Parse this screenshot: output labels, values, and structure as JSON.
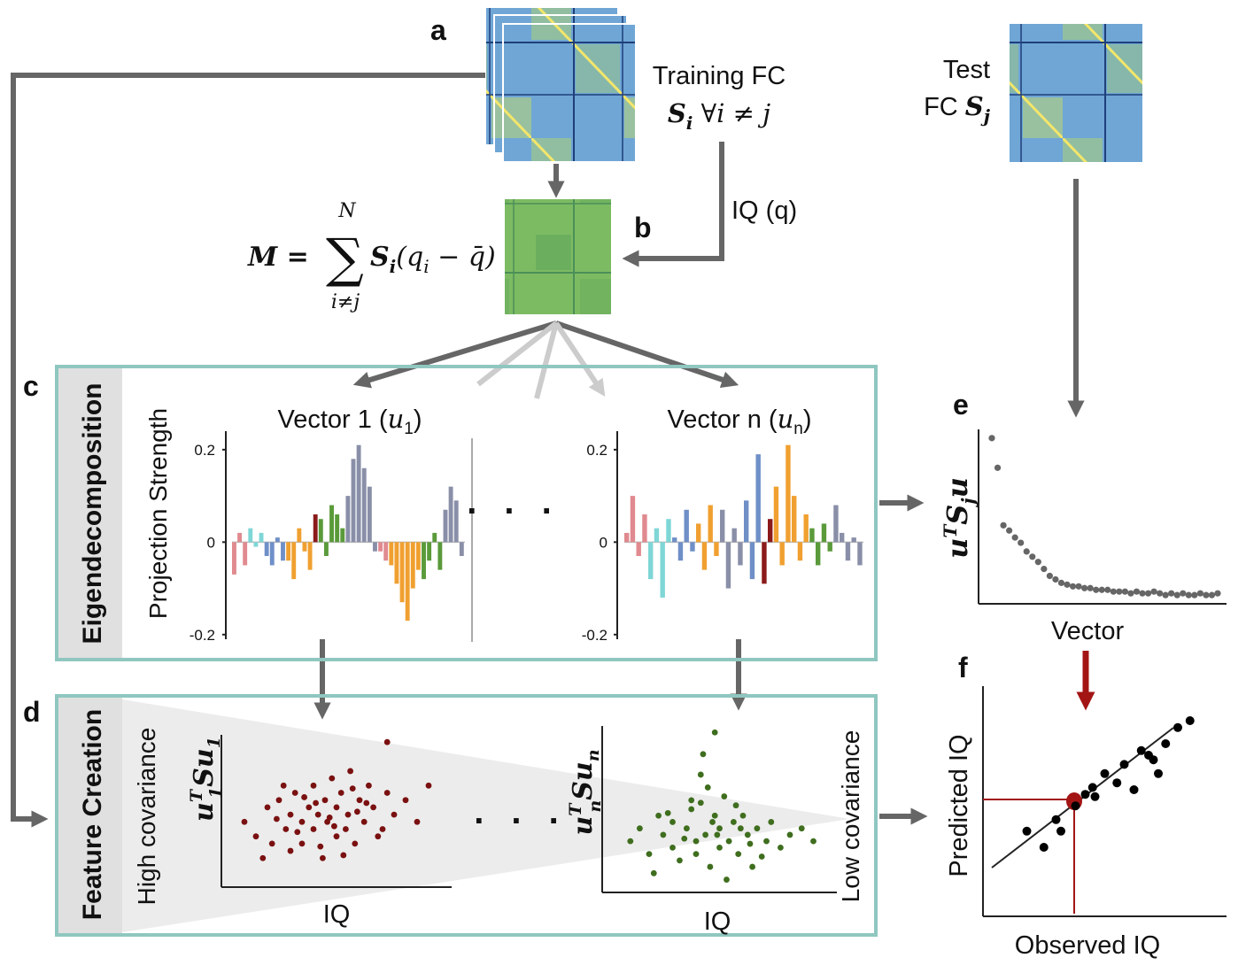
{
  "panel_labels": {
    "a": "a",
    "b": "b",
    "c": "c",
    "d": "d",
    "e": "e",
    "f": "f"
  },
  "training": {
    "label": "Training FC",
    "base": "S",
    "sub": "i",
    "rest": " ∀i ≠ j"
  },
  "test": {
    "label": "Test",
    "prefix": "FC ",
    "base": "S",
    "sub": "j"
  },
  "iq_arrow": "IQ (q)",
  "formula": {
    "lhs": "M =",
    "sigma": "∑",
    "upper": "N",
    "lower": "i≠j",
    "term": "S",
    "term_sub": "i",
    "paren": "(q",
    "paren_sub": "i",
    "tail": " − q̄)"
  },
  "eigen_box": {
    "title": "Eigendecomposition",
    "ylabel": "Projection Strength",
    "ellipsis": ". . ."
  },
  "feature_box": {
    "title": "Feature Creation",
    "high": "High covariance",
    "low": "Low covariance",
    "ellipsis": ". . ."
  },
  "charts": [
    {
      "type": "bar",
      "title": "Vector 1 (",
      "title_sym": "u",
      "title_sub": "1",
      "title_end": ")",
      "ylim": [
        -0.21,
        0.24
      ],
      "yticks": [
        0.2,
        0,
        -0.2
      ],
      "series": [
        {
          "color": "#e08a8f",
          "values": [
            -0.07,
            0.02,
            -0.05
          ]
        },
        {
          "color": "#7fd6d6",
          "values": [
            0.03,
            -0.01,
            0.02
          ]
        },
        {
          "color": "#6f8fc7",
          "values": [
            -0.03,
            -0.05,
            0.01,
            -0.04
          ]
        },
        {
          "color": "#f0a030",
          "values": [
            -0.04,
            -0.08,
            0.03,
            -0.02,
            -0.06
          ]
        },
        {
          "color": "#8b1a1a",
          "values": [
            0.06
          ]
        },
        {
          "color": "#5a9a3a",
          "values": [
            0.05,
            -0.03,
            0.08,
            0.06,
            0.03
          ]
        },
        {
          "color": "#8a8fa8",
          "values": [
            0.1,
            0.18,
            0.21,
            0.16,
            0.12,
            -0.02
          ]
        },
        {
          "color": "#e08a8f",
          "values": [
            -0.02,
            -0.04
          ]
        },
        {
          "color": "#f0a030",
          "values": [
            -0.05,
            -0.09,
            -0.13,
            -0.17,
            -0.1,
            -0.06
          ]
        },
        {
          "color": "#5a9a3a",
          "values": [
            -0.08,
            -0.04,
            0.02,
            -0.06
          ]
        },
        {
          "color": "#8a8fa8",
          "values": [
            0.07,
            0.12,
            0.09,
            -0.03
          ]
        }
      ]
    },
    {
      "type": "bar",
      "title": "Vector n (",
      "title_sym": "u",
      "title_sub": "n",
      "title_end": ")",
      "ylim": [
        -0.21,
        0.24
      ],
      "yticks": [
        0.2,
        0,
        -0.2
      ],
      "series": [
        {
          "color": "#e08a8f",
          "values": [
            0.02,
            0.1,
            -0.03,
            0.06
          ]
        },
        {
          "color": "#7fd6d6",
          "values": [
            -0.08,
            0.03,
            -0.12,
            0.05
          ]
        },
        {
          "color": "#6f8fc7",
          "values": [
            0.01,
            -0.04,
            0.07,
            -0.02
          ]
        },
        {
          "color": "#f0a030",
          "values": [
            0.04,
            -0.06,
            0.08,
            -0.03
          ]
        },
        {
          "color": "#8a8fa8",
          "values": [
            0.07,
            -0.1,
            0.03,
            -0.05
          ]
        },
        {
          "color": "#6f8fc7",
          "values": [
            0.09,
            -0.08,
            0.19
          ]
        },
        {
          "color": "#8b1a1a",
          "values": [
            -0.09,
            0.05
          ]
        },
        {
          "color": "#f0a030",
          "values": [
            0.12,
            -0.05,
            0.21,
            0.1,
            -0.04,
            0.06
          ]
        },
        {
          "color": "#5a9a3a",
          "values": [
            0.03,
            -0.05,
            0.04,
            -0.02
          ]
        },
        {
          "color": "#8a8fa8",
          "values": [
            0.08,
            0.02,
            -0.04,
            0.01,
            -0.05
          ]
        }
      ]
    },
    {
      "type": "scatter",
      "ylabel_base": "u",
      "ylabel_sup": "T",
      "ylabel_mid": "S",
      "ylabel_sub": "j",
      "ylabel_end": "u",
      "xlabel": "Vector",
      "ylim": [
        0,
        1
      ],
      "color": "#666666",
      "values": [
        0.95,
        0.78,
        0.45,
        0.42,
        0.38,
        0.35,
        0.3,
        0.27,
        0.24,
        0.2,
        0.16,
        0.14,
        0.12,
        0.11,
        0.1,
        0.1,
        0.09,
        0.09,
        0.08,
        0.08,
        0.08,
        0.07,
        0.07,
        0.07,
        0.06,
        0.07,
        0.06,
        0.06,
        0.07,
        0.06,
        0.05,
        0.06,
        0.05,
        0.06,
        0.05,
        0.05,
        0.06,
        0.05,
        0.05,
        0.06
      ]
    },
    {
      "type": "scatter",
      "ylabel_base": "u",
      "ylabel_sup": "T",
      "ylabel_sub": "1",
      "ylabel_mid": "S",
      "ylabel_end": "u",
      "ylabel_end_sub": "1",
      "xlabel": "IQ",
      "xlim": [
        0,
        1
      ],
      "ylim": [
        0,
        1.05
      ],
      "color": "#7a1010",
      "x": [
        0.1,
        0.15,
        0.2,
        0.22,
        0.25,
        0.28,
        0.3,
        0.3,
        0.32,
        0.35,
        0.35,
        0.38,
        0.4,
        0.4,
        0.42,
        0.44,
        0.45,
        0.46,
        0.48,
        0.5,
        0.5,
        0.52,
        0.54,
        0.55,
        0.56,
        0.58,
        0.6,
        0.62,
        0.64,
        0.66,
        0.7,
        0.72,
        0.75,
        0.8,
        0.85,
        0.9,
        0.18,
        0.27,
        0.33,
        0.43,
        0.47,
        0.53,
        0.57,
        0.63,
        0.68,
        0.36,
        0.49,
        0.41,
        0.59,
        0.24,
        0.72
      ],
      "y": [
        0.45,
        0.35,
        0.55,
        0.3,
        0.6,
        0.4,
        0.5,
        0.25,
        0.65,
        0.45,
        0.3,
        0.55,
        0.7,
        0.4,
        0.5,
        0.2,
        0.6,
        0.45,
        0.75,
        0.35,
        0.55,
        0.65,
        0.4,
        0.5,
        0.8,
        0.3,
        0.6,
        0.45,
        0.7,
        0.55,
        0.4,
        0.65,
        0.5,
        0.6,
        0.45,
        0.7,
        0.2,
        0.7,
        0.38,
        0.28,
        0.48,
        0.22,
        0.68,
        0.58,
        0.35,
        0.62,
        0.42,
        0.58,
        0.52,
        0.47,
        1.0
      ]
    },
    {
      "type": "scatter",
      "ylabel_base": "u",
      "ylabel_sup": "T",
      "ylabel_sub": "n",
      "ylabel_mid": "S",
      "ylabel_end": "u",
      "ylabel_end_sub": "n",
      "xlabel": "IQ",
      "xlim": [
        0,
        1
      ],
      "ylim": [
        0,
        1.3
      ],
      "color": "#3f6e1e",
      "x": [
        0.12,
        0.16,
        0.2,
        0.24,
        0.26,
        0.3,
        0.3,
        0.33,
        0.36,
        0.38,
        0.4,
        0.4,
        0.42,
        0.44,
        0.46,
        0.48,
        0.5,
        0.5,
        0.52,
        0.54,
        0.56,
        0.58,
        0.6,
        0.62,
        0.64,
        0.66,
        0.7,
        0.72,
        0.76,
        0.8,
        0.85,
        0.9,
        0.22,
        0.28,
        0.35,
        0.45,
        0.47,
        0.53,
        0.57,
        0.63,
        0.68,
        0.38,
        0.49,
        0.42,
        0.59,
        0.43,
        0.48
      ],
      "y": [
        0.4,
        0.5,
        0.3,
        0.6,
        0.45,
        0.35,
        0.55,
        0.25,
        0.5,
        0.65,
        0.4,
        0.3,
        0.7,
        0.45,
        0.2,
        0.6,
        0.35,
        0.5,
        0.75,
        0.4,
        0.55,
        0.3,
        0.6,
        0.45,
        0.2,
        0.5,
        0.4,
        0.55,
        0.35,
        0.45,
        0.5,
        0.4,
        0.15,
        0.62,
        0.42,
        0.82,
        0.55,
        0.1,
        0.68,
        0.38,
        0.28,
        0.72,
        0.45,
        0.92,
        0.5,
        1.08,
        1.25
      ]
    },
    {
      "type": "scatter",
      "ylabel": "Predicted IQ",
      "xlabel": "Observed IQ",
      "xlim": [
        0,
        1
      ],
      "ylim": [
        0,
        1
      ],
      "color": "#000000",
      "x": [
        0.18,
        0.25,
        0.3,
        0.32,
        0.38,
        0.42,
        0.46,
        0.5,
        0.55,
        0.58,
        0.62,
        0.65,
        0.7,
        0.75,
        0.8,
        0.85,
        0.72,
        0.68,
        0.45
      ],
      "y": [
        0.37,
        0.3,
        0.42,
        0.37,
        0.48,
        0.53,
        0.52,
        0.62,
        0.58,
        0.66,
        0.55,
        0.72,
        0.68,
        0.75,
        0.82,
        0.85,
        0.62,
        0.7,
        0.56
      ]
    }
  ]
}
